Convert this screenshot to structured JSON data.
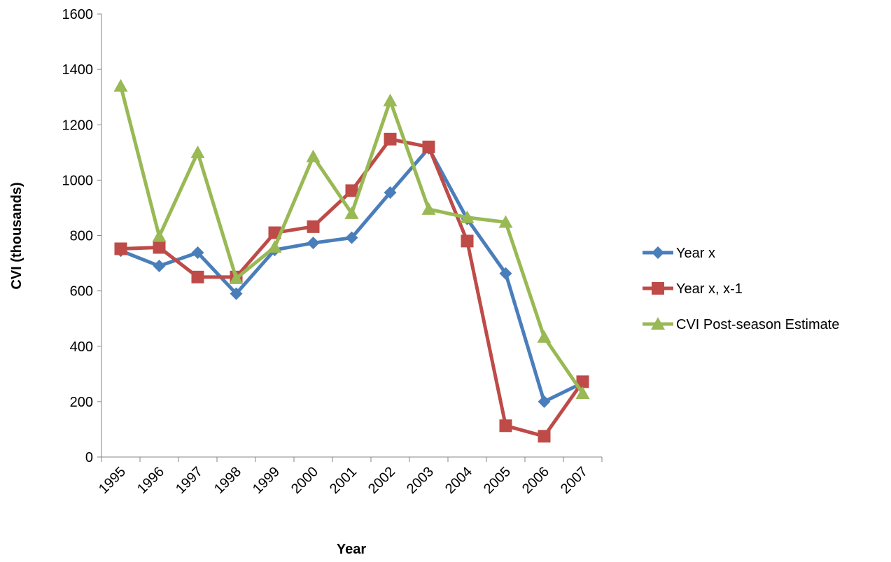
{
  "chart_data": {
    "type": "line",
    "title": "",
    "xlabel": "Year",
    "ylabel": "CVI (thousands)",
    "ylim": [
      0,
      1600
    ],
    "yticks": [
      0,
      200,
      400,
      600,
      800,
      1000,
      1200,
      1400,
      1600
    ],
    "categories": [
      "1995",
      "1996",
      "1997",
      "1998",
      "1999",
      "2000",
      "2001",
      "2002",
      "2003",
      "2004",
      "2005",
      "2006",
      "2007"
    ],
    "legend_position": "right",
    "grid": false,
    "series": [
      {
        "name": "Year x",
        "color": "#4A7EBB",
        "marker": "diamond",
        "values": [
          745,
          690,
          738,
          590,
          748,
          773,
          792,
          955,
          1115,
          860,
          663,
          200,
          268
        ]
      },
      {
        "name": "Year x, x-1",
        "color": "#BE4B48",
        "marker": "square",
        "values": [
          752,
          757,
          650,
          650,
          810,
          832,
          962,
          1148,
          1120,
          780,
          113,
          75,
          272
        ]
      },
      {
        "name": "CVI Post-season Estimate",
        "color": "#98B954",
        "marker": "triangle",
        "values": [
          1340,
          797,
          1100,
          645,
          758,
          1085,
          880,
          1287,
          895,
          865,
          848,
          433,
          230
        ]
      }
    ]
  }
}
